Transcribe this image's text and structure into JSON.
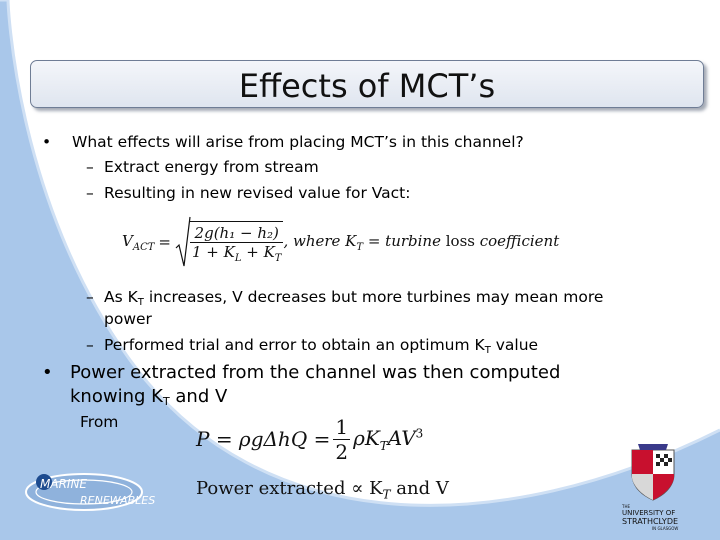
{
  "slide": {
    "title": "Effects of MCT’s",
    "bullet1": "What effects will arise from placing MCT’s in this channel?",
    "sub1": "Extract energy from stream",
    "sub2": "Resulting in new revised value for Vact:",
    "sub3_a": "As K",
    "sub3_sub": "T",
    "sub3_b": " increases, V decreases but more turbines may mean more",
    "sub3_c": "power",
    "sub4_a": "Performed trial and error to obtain an optimum K",
    "sub4_sub": "T",
    "sub4_b": " value",
    "bullet2_a": "Power extracted from the channel was then computed",
    "bullet2_b": "knowing K",
    "bullet2_sub": "T",
    "bullet2_c": " and V",
    "from": "From"
  },
  "equations": {
    "vact_lhs": "V",
    "vact_lhs_sub": "ACT",
    "vact_eq": "=",
    "vact_num": "2g(h₁ − h₂)",
    "vact_den": "1 + K",
    "vact_den_sub1": "L",
    "vact_den_mid": " + K",
    "vact_den_sub2": "T",
    "vact_where": ",  where K",
    "vact_where_sub": "T",
    "vact_tail": " = turbine",
    "vact_loss": " loss",
    "vact_coef": " coefficient",
    "power_lhs": "P = ρgΔhQ =",
    "power_num": "1",
    "power_den": "2",
    "power_rhs": "ρK",
    "power_rhs_sub": "T",
    "power_rhs_tail": "AV",
    "power_exp": "3",
    "prop_a": "Power extracted ∝ K",
    "prop_sub": "T",
    "prop_b": " and V"
  },
  "logos": {
    "marine_line1": "MARINE",
    "marine_line2": "RENEWABLES",
    "uni_the": "THE",
    "uni_line1": "UNIVERSITY OF",
    "uni_line2": "STRATHCLYDE",
    "uni_line3": "IN GLASGOW"
  },
  "colors": {
    "background_arc": "#a9c7ea",
    "title_border": "#6f7d95"
  }
}
